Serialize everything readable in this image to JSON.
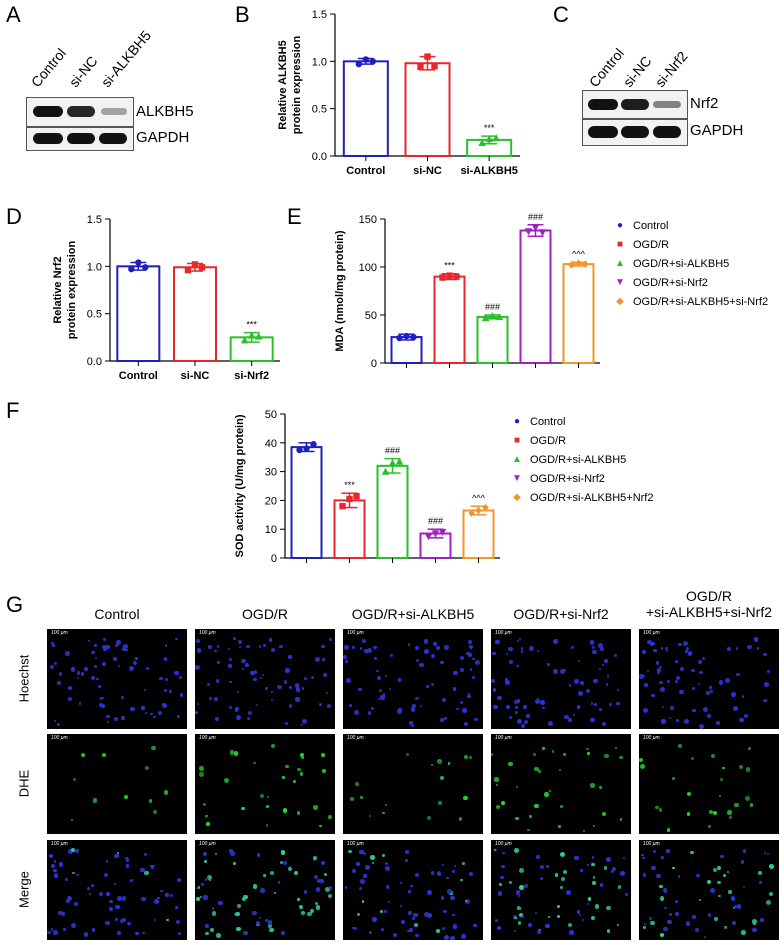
{
  "panels": {
    "A": "A",
    "B": "B",
    "C": "C",
    "D": "D",
    "E": "E",
    "F": "F",
    "G": "G"
  },
  "panel_a": {
    "lanes": [
      "Control",
      "si-NC",
      "si-ALKBH5"
    ],
    "rows": [
      "ALKBH5",
      "GAPDH"
    ],
    "band_intensity": [
      [
        1.0,
        0.9,
        0.35
      ],
      [
        1.0,
        1.0,
        1.0
      ]
    ]
  },
  "panel_c": {
    "lanes": [
      "Control",
      "si-NC",
      "si-Nrf2"
    ],
    "rows": [
      "Nrf2",
      "GAPDH"
    ],
    "band_intensity": [
      [
        1.0,
        0.95,
        0.45
      ],
      [
        1.0,
        1.0,
        1.0
      ]
    ]
  },
  "chart_data": [
    {
      "id": "B",
      "type": "bar",
      "categories": [
        "Control",
        "si-NC",
        "si-ALKBH5"
      ],
      "values": [
        1.0,
        0.98,
        0.17
      ],
      "errors": [
        0.03,
        0.07,
        0.04
      ],
      "points": [
        [
          0.97,
          1.02,
          1.0
        ],
        [
          0.94,
          1.05,
          0.95
        ],
        [
          0.14,
          0.18,
          0.19
        ]
      ],
      "colors": [
        "#1f1fbf",
        "#e8262b",
        "#2bbf2b"
      ],
      "markers": [
        "circle",
        "square",
        "triangle"
      ],
      "ylabel": "Relative ALKBH5 protein expression",
      "ylim": [
        0,
        1.5
      ],
      "yticks": [
        "0.0",
        "0.5",
        "1.0",
        "1.5"
      ],
      "annotations": [
        "",
        "",
        "***"
      ]
    },
    {
      "id": "D",
      "type": "bar",
      "categories": [
        "Control",
        "si-NC",
        "si-Nrf2"
      ],
      "values": [
        1.0,
        0.99,
        0.25
      ],
      "errors": [
        0.04,
        0.04,
        0.05
      ],
      "points": [
        [
          0.97,
          1.04,
          0.99
        ],
        [
          0.96,
          1.02,
          0.99
        ],
        [
          0.22,
          0.27,
          0.26
        ]
      ],
      "colors": [
        "#1f1fbf",
        "#e8262b",
        "#2bbf2b"
      ],
      "markers": [
        "circle",
        "square",
        "triangle"
      ],
      "ylabel": "Relative Nrf2 protein expression",
      "ylim": [
        0,
        1.5
      ],
      "yticks": [
        "0.0",
        "0.5",
        "1.0",
        "1.5"
      ],
      "annotations": [
        "",
        "",
        "***"
      ]
    },
    {
      "id": "E",
      "type": "bar",
      "categories": [
        "Control",
        "OGD/R",
        "OGD/R+si-ALKBH5",
        "OGD/R+si-Nrf2",
        "OGD/R+si-ALKBH5+si-Nrf2"
      ],
      "values": [
        27,
        90,
        48,
        138,
        103
      ],
      "errors": [
        3,
        3,
        2,
        6,
        2
      ],
      "points": [
        [
          26,
          28,
          27
        ],
        [
          89,
          91,
          90
        ],
        [
          47,
          49,
          48
        ],
        [
          137,
          141,
          136
        ],
        [
          102,
          104,
          103
        ]
      ],
      "colors": [
        "#1f1fbf",
        "#e8262b",
        "#2bbf2b",
        "#a020c0",
        "#f0962b"
      ],
      "markers": [
        "circle",
        "square",
        "triangle",
        "triangle-down",
        "diamond"
      ],
      "ylabel": "MDA (nmol/mg protein)",
      "ylim": [
        0,
        150
      ],
      "yticks": [
        "0",
        "50",
        "100",
        "150"
      ],
      "annotations": [
        "",
        "***",
        "###",
        "###",
        "^^^"
      ],
      "legend": [
        "Control",
        "OGD/R",
        "OGD/R+si-ALKBH5",
        "OGD/R+si-Nrf2",
        "OGD/R+si-ALKBH5+si-Nrf2"
      ]
    },
    {
      "id": "F",
      "type": "bar",
      "categories": [
        "Control",
        "OGD/R",
        "OGD/R+si-ALKBH5",
        "OGD/R+si-Nrf2",
        "OGD/R+si-ALKBH5+Nrf2"
      ],
      "values": [
        38.5,
        20,
        32,
        8.5,
        16.5
      ],
      "errors": [
        1.5,
        2.5,
        2.5,
        1.5,
        1.5
      ],
      "points": [
        [
          37.5,
          38,
          39.5
        ],
        [
          18,
          20.5,
          21.5
        ],
        [
          30,
          33,
          33.5
        ],
        [
          7.5,
          8.5,
          9
        ],
        [
          15.5,
          16.5,
          17.5
        ]
      ],
      "colors": [
        "#1f1fbf",
        "#e8262b",
        "#2bbf2b",
        "#a020c0",
        "#f0962b"
      ],
      "markers": [
        "circle",
        "square",
        "triangle",
        "triangle-down",
        "diamond"
      ],
      "ylabel": "SOD activity (U/mg protein)",
      "ylim": [
        0,
        50
      ],
      "yticks": [
        "0",
        "10",
        "20",
        "30",
        "40",
        "50"
      ],
      "annotations": [
        "",
        "***",
        "###",
        "###",
        "^^^"
      ],
      "legend": [
        "Control",
        "OGD/R",
        "OGD/R+si-ALKBH5",
        "OGD/R+si-Nrf2",
        "OGD/R+si-ALKBH5+Nrf2"
      ]
    }
  ],
  "panel_g": {
    "columns": [
      "Control",
      "OGD/R",
      "OGD/R+si-ALKBH5",
      "OGD/R+si-Nrf2",
      "OGD/R\n+si-ALKBH5+si-Nrf2"
    ],
    "rows": [
      "Hoechst",
      "DHE",
      "Merge"
    ],
    "scale_bar": "100 μm"
  }
}
